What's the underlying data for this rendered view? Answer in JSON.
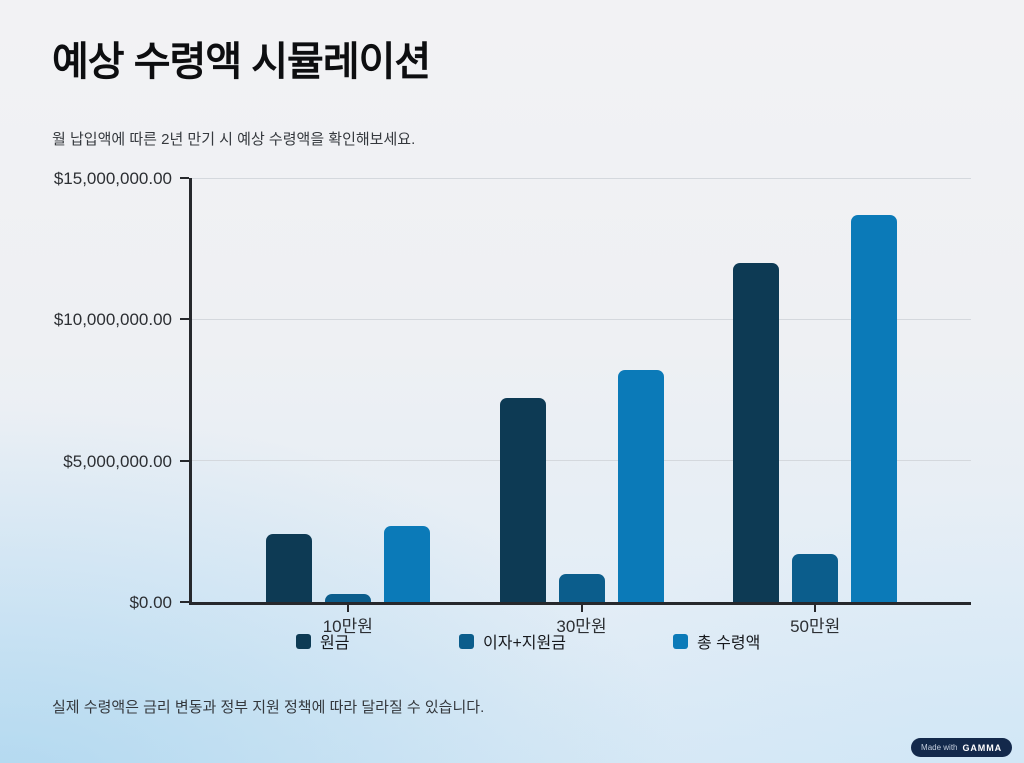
{
  "page": {
    "title": "예상 수령액 시뮬레이션",
    "subtitle": "월 납입액에 따른 2년 만기 시 예상 수령액을 확인해보세요.",
    "footnote": "실제 수령액은 금리 변동과 정부 지원 정책에 따라 달라질 수 있습니다.",
    "badge": {
      "prefix": "Made with",
      "brand": "GAMMA"
    }
  },
  "colors": {
    "axis": "#26282c",
    "gridline": "#d4d8dd",
    "series_principal": "#0d3a54",
    "series_interest": "#0b5d8c",
    "series_total": "#0b7ab8",
    "badge_background": "#13294b"
  },
  "chart_data": {
    "type": "bar",
    "title": "",
    "xlabel": "",
    "ylabel": "",
    "categories": [
      "10만원",
      "30만원",
      "50만원"
    ],
    "series": [
      {
        "name": "원금",
        "color": "#0d3a54",
        "values": [
          2400000,
          7200000,
          12000000
        ]
      },
      {
        "name": "이자+지원금",
        "color": "#0b5d8c",
        "values": [
          300000,
          1000000,
          1700000
        ]
      },
      {
        "name": "총 수령액",
        "color": "#0b7ab8",
        "values": [
          2700000,
          8200000,
          13700000
        ]
      }
    ],
    "y_axis": {
      "ticks": [
        {
          "label": "$0.00",
          "value": 0
        },
        {
          "label": "$5,000,000.00",
          "value": 5000000
        },
        {
          "label": "$10,000,000.00",
          "value": 10000000
        },
        {
          "label": "$15,000,000.00",
          "value": 15000000
        }
      ]
    },
    "ylim": [
      0,
      15000000
    ],
    "grid": true,
    "legend_position": "bottom"
  }
}
